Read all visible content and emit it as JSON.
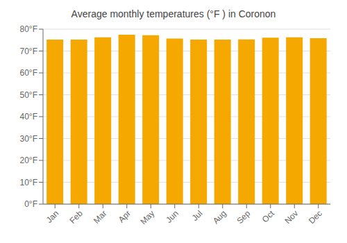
{
  "chart_data": {
    "type": "bar",
    "title": "Average monthly temperatures (°F ) in Coronon",
    "categories": [
      "Jan",
      "Feb",
      "Mar",
      "Apr",
      "May",
      "Jun",
      "Jul",
      "Aug",
      "Sep",
      "Oct",
      "Nov",
      "Dec"
    ],
    "values": [
      75.2,
      75.2,
      76.3,
      77.5,
      77.2,
      75.7,
      75.2,
      75.2,
      75.3,
      76.1,
      76.3,
      75.9
    ],
    "color": "#F5A800",
    "ylim": [
      0,
      80
    ],
    "yticks": [
      {
        "value": 0,
        "label": "0°F"
      },
      {
        "value": 10,
        "label": "10°F"
      },
      {
        "value": 20,
        "label": "20°F"
      },
      {
        "value": 30,
        "label": "30°F"
      },
      {
        "value": 40,
        "label": "40°F"
      },
      {
        "value": 50,
        "label": "50°F"
      },
      {
        "value": 60,
        "label": "60°F"
      },
      {
        "value": 70,
        "label": "70°F"
      },
      {
        "value": 80,
        "label": "80°F"
      }
    ],
    "grid": true
  }
}
